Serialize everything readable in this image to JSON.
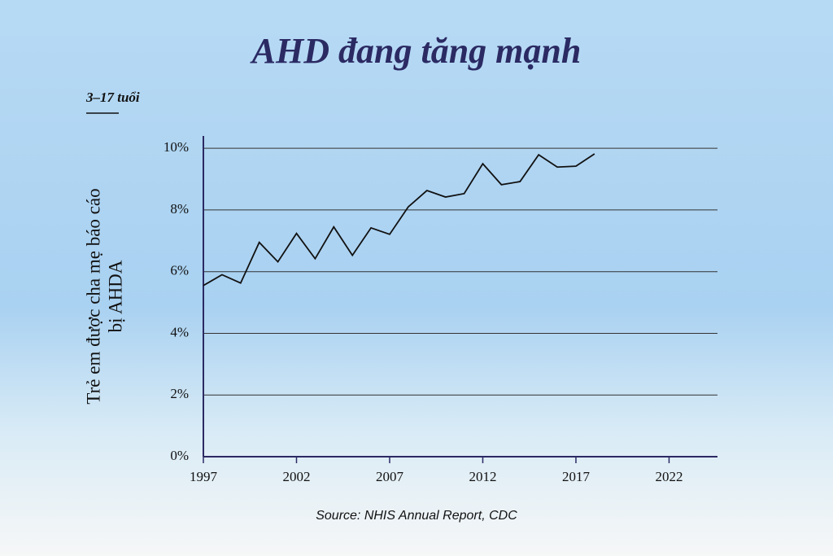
{
  "chart_data": {
    "type": "line",
    "title": "AHD đang tăng mạnh",
    "subtitle": "3–17 tuổi",
    "ylabel": [
      "Trẻ em được cha mẹ báo cáo",
      "bị AHDA"
    ],
    "source": "Source: NHIS Annual Report, CDC",
    "x": [
      1997,
      1998,
      1999,
      2000,
      2001,
      2002,
      2003,
      2004,
      2005,
      2006,
      2007,
      2008,
      2009,
      2010,
      2011,
      2012,
      2013,
      2014,
      2015,
      2016,
      2017,
      2018
    ],
    "series": [
      {
        "color": "#111111",
        "values": [
          5.55,
          5.9,
          5.63,
          6.95,
          6.32,
          7.24,
          6.42,
          7.45,
          6.53,
          7.42,
          7.21,
          8.1,
          8.63,
          8.42,
          8.53,
          9.5,
          8.82,
          8.92,
          9.79,
          9.39,
          9.42,
          9.82
        ]
      }
    ],
    "xlim": [
      1997,
      2024.6
    ],
    "xticks": [
      1997,
      2002,
      2007,
      2012,
      2017,
      2022
    ],
    "ylim": [
      0,
      10.4
    ],
    "yticks": [
      {
        "value": 0,
        "label": "0%"
      },
      {
        "value": 2,
        "label": "2%"
      },
      {
        "value": 4,
        "label": "4%"
      },
      {
        "value": 6,
        "label": "6%"
      },
      {
        "value": 8,
        "label": "8%"
      },
      {
        "value": 10,
        "label": "10%"
      }
    ],
    "grid": true
  }
}
